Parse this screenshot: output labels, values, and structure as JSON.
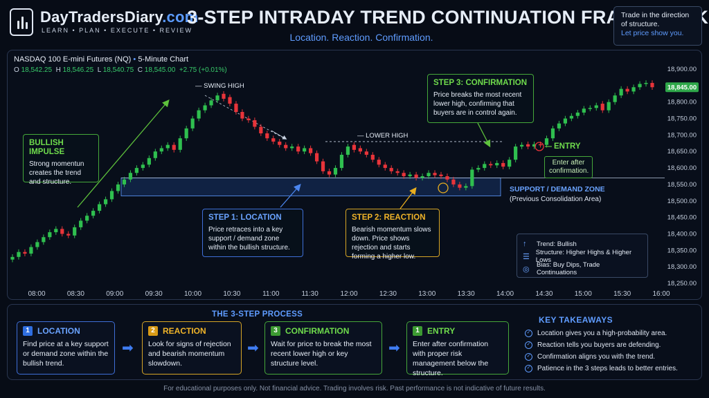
{
  "brand": {
    "name": "DayTradersDiary",
    "tld": ".com",
    "tagline": "LEARN • PLAN • EXECUTE • REVIEW"
  },
  "title": "3-STEP INTRADAY TREND CONTINUATION FRAMEWORK",
  "subtitle": "Location. Reaction. Confirmation.",
  "top_note": {
    "line1": "Trade in the direction of structure.",
    "line2": "Let price show you."
  },
  "instrument": {
    "name": "NASDAQ 100 E-mini Futures (NQ)",
    "sep": "•",
    "timeframe": "5-Minute Chart"
  },
  "ohlc": {
    "o_label": "O",
    "o": "18,542.25",
    "h_label": "H",
    "h": "18,546.25",
    "l_label": "L",
    "l": "18,540.75",
    "c_label": "C",
    "c": "18,545.00",
    "change": "+2.75 (+0.01%)"
  },
  "chart_data": {
    "type": "candlestick",
    "title": "NASDAQ 100 E-mini Futures (NQ)",
    "xlabel": "",
    "ylabel": "",
    "x_ticks": [
      "08:00",
      "08:30",
      "09:00",
      "09:30",
      "10:00",
      "10:30",
      "11:00",
      "11:30",
      "12:00",
      "12:30",
      "13:00",
      "13:30",
      "14:00",
      "14:30",
      "15:00",
      "15:30",
      "16:00"
    ],
    "y_ticks": [
      "18,900.00",
      "18,850.00",
      "18,800.00",
      "18,750.00",
      "18,700.00",
      "18,650.00",
      "18,600.00",
      "18,550.00",
      "18,500.00",
      "18,450.00",
      "18,400.00",
      "18,350.00",
      "18,300.00",
      "18,250.00"
    ],
    "ylim": [
      18250,
      18900
    ],
    "last_price": "18,845.00",
    "bullish_color": "#2fbf4f",
    "bearish_color": "#e8343a",
    "support_zone": {
      "low": 18515,
      "high": 18570,
      "label": "SUPPORT / DEMAND ZONE",
      "sublabel": "(Previous Consolidation Area)"
    },
    "swing_high": {
      "value": 18825,
      "label": "SWING HIGH"
    },
    "lower_high": {
      "value": 18680,
      "label": "LOWER HIGH"
    },
    "closes": [
      18330,
      18345,
      18340,
      18360,
      18375,
      18390,
      18405,
      18415,
      18400,
      18395,
      18420,
      18440,
      18455,
      18470,
      18490,
      18505,
      18530,
      18550,
      18565,
      18585,
      18600,
      18610,
      18630,
      18650,
      18660,
      18670,
      18655,
      18690,
      18720,
      18750,
      18775,
      18790,
      18805,
      18820,
      18810,
      18795,
      18770,
      18750,
      18745,
      18725,
      18705,
      18690,
      18680,
      18670,
      18660,
      18665,
      18650,
      18660,
      18645,
      18620,
      18590,
      18580,
      18600,
      18640,
      18665,
      18655,
      18650,
      18640,
      18625,
      18610,
      18600,
      18590,
      18585,
      18575,
      18580,
      18570,
      18575,
      18585,
      18578,
      18575,
      18565,
      18550,
      18540,
      18545,
      18595,
      18600,
      18612,
      18608,
      18615,
      18604,
      18625,
      18665,
      18670,
      18665,
      18672,
      18670,
      18690,
      18720,
      18735,
      18750,
      18758,
      18768,
      18780,
      18782,
      18790,
      18775,
      18800,
      18820,
      18840,
      18832,
      18845,
      18855,
      18858,
      18845
    ],
    "opens": [
      18322,
      18330,
      18345,
      18340,
      18360,
      18375,
      18390,
      18405,
      18415,
      18400,
      18395,
      18420,
      18440,
      18455,
      18470,
      18490,
      18505,
      18530,
      18550,
      18565,
      18585,
      18600,
      18610,
      18630,
      18650,
      18660,
      18670,
      18655,
      18690,
      18720,
      18750,
      18775,
      18790,
      18805,
      18825,
      18815,
      18795,
      18770,
      18750,
      18745,
      18725,
      18705,
      18690,
      18680,
      18670,
      18660,
      18665,
      18650,
      18660,
      18645,
      18620,
      18590,
      18580,
      18600,
      18640,
      18670,
      18660,
      18650,
      18640,
      18625,
      18610,
      18600,
      18590,
      18585,
      18575,
      18580,
      18570,
      18575,
      18585,
      18580,
      18575,
      18565,
      18550,
      18540,
      18545,
      18595,
      18600,
      18612,
      18608,
      18615,
      18604,
      18625,
      18665,
      18672,
      18665,
      18672,
      18670,
      18690,
      18720,
      18735,
      18750,
      18758,
      18768,
      18780,
      18782,
      18795,
      18775,
      18800,
      18820,
      18840,
      18832,
      18845,
      18855,
      18858
    ]
  },
  "callouts": {
    "impulse": {
      "title": "BULLISH IMPULSE",
      "text": "Strong momentun creates the trend and structure."
    },
    "location": {
      "title": "STEP 1: LOCATION",
      "text": "Price retraces into a key support / demand zone within the bullish structure."
    },
    "reaction": {
      "title": "STEP 2: REACTION",
      "text": "Bearish momentum slows down. Price shows rejection and starts forming a higher low."
    },
    "confirmation": {
      "title": "STEP 3: CONFIRMATION",
      "text": "Price breaks the most recent lower high, confirming that buyers are in control again."
    },
    "entry": {
      "title": "ENTRY",
      "text": "Enter after confirmation."
    }
  },
  "legend": {
    "trend": "Trend: Bullish",
    "structure": "Structure: Higher Highs & Higher Lows",
    "bias": "Bias: Buy Dips, Trade Continuations"
  },
  "process": {
    "title": "THE 3-STEP PROCESS",
    "steps": [
      {
        "num": "1",
        "title": "LOCATION",
        "text": "Find price at a key support or demand zone within the bullish trend."
      },
      {
        "num": "2",
        "title": "REACTION",
        "text": "Look for signs of rejection and bearish momentum slowdown."
      },
      {
        "num": "3",
        "title": "CONFIRMATION",
        "text": "Wait for price to break the most recent lower high or key structure level."
      },
      {
        "num": "1",
        "title": "ENTRY",
        "text": "Enter after confirmation with proper risk management below the structure."
      }
    ]
  },
  "takeaways": {
    "title": "KEY TAKEAWAYS",
    "items": [
      "Location gives you a high-probability area.",
      "Reaction tells you buyers are defending.",
      "Confirmation aligns you with the trend.",
      "Patience in the 3 steps leads to better entries."
    ]
  },
  "disclaimer": "For educational purposes only. Not financial advice. Trading involves risk. Past performance is not indicative of future results.",
  "colors": {
    "accent_blue": "#5f9cff",
    "green": "#6fdc4c",
    "gold": "#f0b429",
    "background": "#070c16"
  }
}
